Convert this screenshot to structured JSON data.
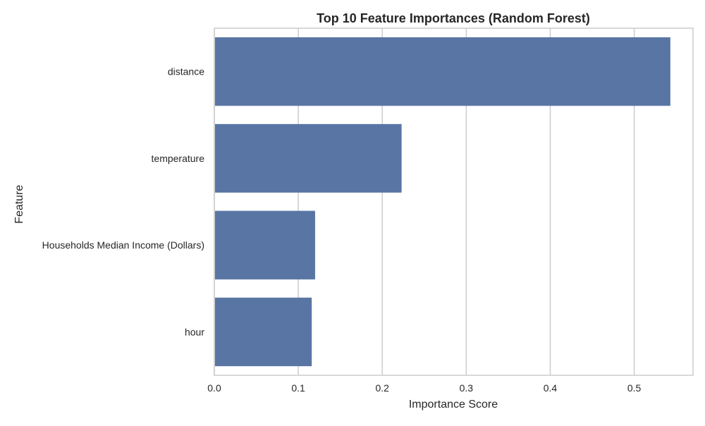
{
  "chart_data": {
    "type": "bar",
    "orientation": "horizontal",
    "title": "Top 10 Feature Importances (Random Forest)",
    "xlabel": "Importance Score",
    "ylabel": "Feature",
    "categories": [
      "distance",
      "temperature",
      "Households Median Income (Dollars)",
      "hour"
    ],
    "values": [
      0.543,
      0.223,
      0.12,
      0.116
    ],
    "xlim": [
      0,
      0.57
    ],
    "xticks": [
      "0.0",
      "0.1",
      "0.2",
      "0.3",
      "0.4",
      "0.5"
    ],
    "grid": true,
    "legend": "none"
  },
  "colors": {
    "bar": "#5875a4",
    "grid": "#cccccc",
    "axes_border": "#cccccc",
    "text": "#262626"
  }
}
